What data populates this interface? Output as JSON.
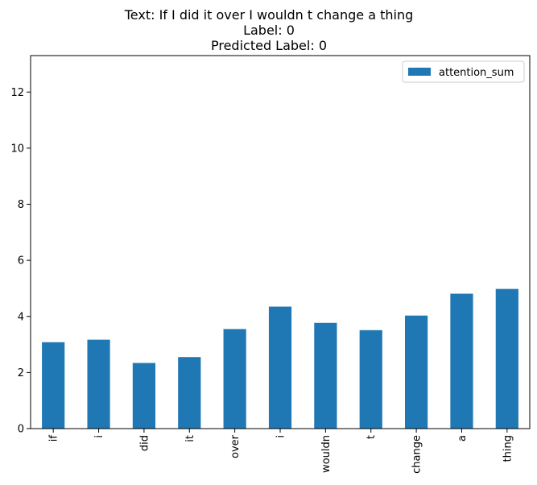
{
  "chart_data": {
    "type": "bar",
    "title_lines": [
      "Text: If I did it over I wouldn t change a thing",
      "Label: 0",
      "Predicted Label: 0"
    ],
    "xlabel": "",
    "ylabel": "",
    "categories": [
      "if",
      "i",
      "did",
      "it",
      "over",
      "i",
      "wouldn",
      "t",
      "change",
      "a",
      "thing"
    ],
    "series": [
      {
        "name": "attention_sum",
        "color": "#1f77b4",
        "values": [
          3.08,
          3.17,
          2.34,
          2.55,
          3.55,
          4.35,
          3.77,
          3.51,
          4.03,
          4.81,
          4.98
        ]
      }
    ],
    "ylim": [
      0,
      13.3
    ],
    "yticks": [
      0,
      2,
      4,
      6,
      8,
      10,
      12
    ],
    "legend_position": "top-right",
    "grid": false
  }
}
